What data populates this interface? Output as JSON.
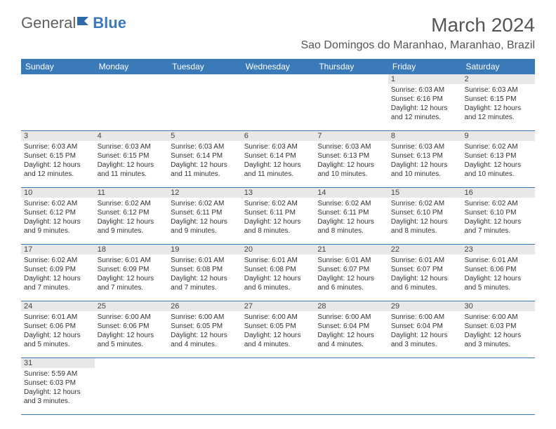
{
  "logo": {
    "part1": "General",
    "part2": "Blue"
  },
  "title": "March 2024",
  "location": "Sao Domingos do Maranhao, Maranhao, Brazil",
  "colors": {
    "header_bg": "#3b7ab8",
    "header_text": "#ffffff",
    "daynum_bg": "#e8e8e8",
    "border": "#3b7ab8",
    "text": "#333333",
    "logo_gray": "#606060",
    "logo_blue": "#3b7ab8"
  },
  "day_headers": [
    "Sunday",
    "Monday",
    "Tuesday",
    "Wednesday",
    "Thursday",
    "Friday",
    "Saturday"
  ],
  "weeks": [
    {
      "nums": [
        "",
        "",
        "",
        "",
        "",
        "1",
        "2"
      ],
      "cells": [
        null,
        null,
        null,
        null,
        null,
        {
          "sunrise": "Sunrise: 6:03 AM",
          "sunset": "Sunset: 6:16 PM",
          "day1": "Daylight: 12 hours",
          "day2": "and 12 minutes."
        },
        {
          "sunrise": "Sunrise: 6:03 AM",
          "sunset": "Sunset: 6:15 PM",
          "day1": "Daylight: 12 hours",
          "day2": "and 12 minutes."
        }
      ]
    },
    {
      "nums": [
        "3",
        "4",
        "5",
        "6",
        "7",
        "8",
        "9"
      ],
      "cells": [
        {
          "sunrise": "Sunrise: 6:03 AM",
          "sunset": "Sunset: 6:15 PM",
          "day1": "Daylight: 12 hours",
          "day2": "and 12 minutes."
        },
        {
          "sunrise": "Sunrise: 6:03 AM",
          "sunset": "Sunset: 6:15 PM",
          "day1": "Daylight: 12 hours",
          "day2": "and 11 minutes."
        },
        {
          "sunrise": "Sunrise: 6:03 AM",
          "sunset": "Sunset: 6:14 PM",
          "day1": "Daylight: 12 hours",
          "day2": "and 11 minutes."
        },
        {
          "sunrise": "Sunrise: 6:03 AM",
          "sunset": "Sunset: 6:14 PM",
          "day1": "Daylight: 12 hours",
          "day2": "and 11 minutes."
        },
        {
          "sunrise": "Sunrise: 6:03 AM",
          "sunset": "Sunset: 6:13 PM",
          "day1": "Daylight: 12 hours",
          "day2": "and 10 minutes."
        },
        {
          "sunrise": "Sunrise: 6:03 AM",
          "sunset": "Sunset: 6:13 PM",
          "day1": "Daylight: 12 hours",
          "day2": "and 10 minutes."
        },
        {
          "sunrise": "Sunrise: 6:02 AM",
          "sunset": "Sunset: 6:13 PM",
          "day1": "Daylight: 12 hours",
          "day2": "and 10 minutes."
        }
      ]
    },
    {
      "nums": [
        "10",
        "11",
        "12",
        "13",
        "14",
        "15",
        "16"
      ],
      "cells": [
        {
          "sunrise": "Sunrise: 6:02 AM",
          "sunset": "Sunset: 6:12 PM",
          "day1": "Daylight: 12 hours",
          "day2": "and 9 minutes."
        },
        {
          "sunrise": "Sunrise: 6:02 AM",
          "sunset": "Sunset: 6:12 PM",
          "day1": "Daylight: 12 hours",
          "day2": "and 9 minutes."
        },
        {
          "sunrise": "Sunrise: 6:02 AM",
          "sunset": "Sunset: 6:11 PM",
          "day1": "Daylight: 12 hours",
          "day2": "and 9 minutes."
        },
        {
          "sunrise": "Sunrise: 6:02 AM",
          "sunset": "Sunset: 6:11 PM",
          "day1": "Daylight: 12 hours",
          "day2": "and 8 minutes."
        },
        {
          "sunrise": "Sunrise: 6:02 AM",
          "sunset": "Sunset: 6:11 PM",
          "day1": "Daylight: 12 hours",
          "day2": "and 8 minutes."
        },
        {
          "sunrise": "Sunrise: 6:02 AM",
          "sunset": "Sunset: 6:10 PM",
          "day1": "Daylight: 12 hours",
          "day2": "and 8 minutes."
        },
        {
          "sunrise": "Sunrise: 6:02 AM",
          "sunset": "Sunset: 6:10 PM",
          "day1": "Daylight: 12 hours",
          "day2": "and 7 minutes."
        }
      ]
    },
    {
      "nums": [
        "17",
        "18",
        "19",
        "20",
        "21",
        "22",
        "23"
      ],
      "cells": [
        {
          "sunrise": "Sunrise: 6:02 AM",
          "sunset": "Sunset: 6:09 PM",
          "day1": "Daylight: 12 hours",
          "day2": "and 7 minutes."
        },
        {
          "sunrise": "Sunrise: 6:01 AM",
          "sunset": "Sunset: 6:09 PM",
          "day1": "Daylight: 12 hours",
          "day2": "and 7 minutes."
        },
        {
          "sunrise": "Sunrise: 6:01 AM",
          "sunset": "Sunset: 6:08 PM",
          "day1": "Daylight: 12 hours",
          "day2": "and 7 minutes."
        },
        {
          "sunrise": "Sunrise: 6:01 AM",
          "sunset": "Sunset: 6:08 PM",
          "day1": "Daylight: 12 hours",
          "day2": "and 6 minutes."
        },
        {
          "sunrise": "Sunrise: 6:01 AM",
          "sunset": "Sunset: 6:07 PM",
          "day1": "Daylight: 12 hours",
          "day2": "and 6 minutes."
        },
        {
          "sunrise": "Sunrise: 6:01 AM",
          "sunset": "Sunset: 6:07 PM",
          "day1": "Daylight: 12 hours",
          "day2": "and 6 minutes."
        },
        {
          "sunrise": "Sunrise: 6:01 AM",
          "sunset": "Sunset: 6:06 PM",
          "day1": "Daylight: 12 hours",
          "day2": "and 5 minutes."
        }
      ]
    },
    {
      "nums": [
        "24",
        "25",
        "26",
        "27",
        "28",
        "29",
        "30"
      ],
      "cells": [
        {
          "sunrise": "Sunrise: 6:01 AM",
          "sunset": "Sunset: 6:06 PM",
          "day1": "Daylight: 12 hours",
          "day2": "and 5 minutes."
        },
        {
          "sunrise": "Sunrise: 6:00 AM",
          "sunset": "Sunset: 6:06 PM",
          "day1": "Daylight: 12 hours",
          "day2": "and 5 minutes."
        },
        {
          "sunrise": "Sunrise: 6:00 AM",
          "sunset": "Sunset: 6:05 PM",
          "day1": "Daylight: 12 hours",
          "day2": "and 4 minutes."
        },
        {
          "sunrise": "Sunrise: 6:00 AM",
          "sunset": "Sunset: 6:05 PM",
          "day1": "Daylight: 12 hours",
          "day2": "and 4 minutes."
        },
        {
          "sunrise": "Sunrise: 6:00 AM",
          "sunset": "Sunset: 6:04 PM",
          "day1": "Daylight: 12 hours",
          "day2": "and 4 minutes."
        },
        {
          "sunrise": "Sunrise: 6:00 AM",
          "sunset": "Sunset: 6:04 PM",
          "day1": "Daylight: 12 hours",
          "day2": "and 3 minutes."
        },
        {
          "sunrise": "Sunrise: 6:00 AM",
          "sunset": "Sunset: 6:03 PM",
          "day1": "Daylight: 12 hours",
          "day2": "and 3 minutes."
        }
      ]
    },
    {
      "nums": [
        "31",
        "",
        "",
        "",
        "",
        "",
        ""
      ],
      "cells": [
        {
          "sunrise": "Sunrise: 5:59 AM",
          "sunset": "Sunset: 6:03 PM",
          "day1": "Daylight: 12 hours",
          "day2": "and 3 minutes."
        },
        null,
        null,
        null,
        null,
        null,
        null
      ]
    }
  ]
}
